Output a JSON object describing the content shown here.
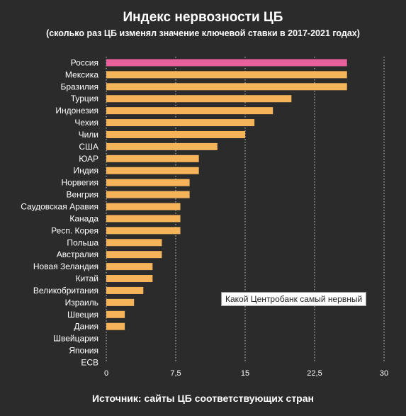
{
  "chart_data": {
    "type": "bar",
    "orientation": "horizontal",
    "title": "Индекс нервозности ЦБ",
    "subtitle": "(сколько раз ЦБ изменял значение ключевой ставки в 2017-2021 годах)",
    "source": "Источник: сайты ЦБ соответствующих стран",
    "categories": [
      "Россия",
      "Мексика",
      "Бразилия",
      "Турция",
      "Индонезия",
      "Чехия",
      "Чили",
      "США",
      "ЮАР",
      "Индия",
      "Норвегия",
      "Венгрия",
      "Саудовская Аравия",
      "Канада",
      "Респ. Корея",
      "Польша",
      "Австралия",
      "Новая Зеландия",
      "Китай",
      "Великобритания",
      "Израиль",
      "Швеция",
      "Дания",
      "Швейцария",
      "Япония",
      "ЕСВ"
    ],
    "values": [
      26,
      26,
      26,
      20,
      18,
      16,
      15,
      12,
      10,
      10,
      9,
      9,
      8,
      8,
      8,
      6,
      6,
      5,
      5,
      4,
      3,
      2,
      2,
      0,
      0,
      0
    ],
    "highlight_index": 0,
    "xlim": [
      0,
      30
    ],
    "ticks": [
      0,
      7.5,
      15,
      22.5,
      30
    ],
    "tick_labels": [
      "0",
      "7,5",
      "15",
      "22,5",
      "30"
    ],
    "grid": "vertical dotted",
    "colors": {
      "bar": "#f6b45a",
      "highlight": "#e8609c",
      "grid": "#cfcfcf",
      "background": "#2b2b2b"
    }
  },
  "tooltip": "Какой Центробанк самый нервный"
}
